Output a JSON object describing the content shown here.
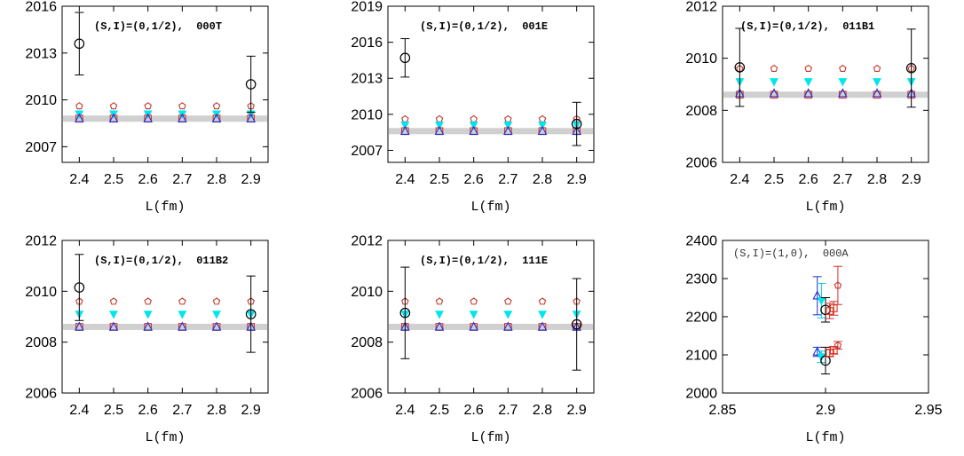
{
  "colors": {
    "black": "#000000",
    "pentagon": "#c0392b",
    "triangle_down": "#00e5ee",
    "square": "#e0301e",
    "triangle_up": "#1f2fd6",
    "band": "#d0d0d0",
    "cyan_bar": "#00c8e8",
    "red_bar": "#d03030"
  },
  "chart_data": [
    {
      "type": "scatter",
      "title": "(S,I)=(0,1/2),  000T",
      "xlabel": "L(fm)",
      "ylabel": "",
      "xlim": [
        2.35,
        2.95
      ],
      "ylim": [
        2006,
        2016
      ],
      "yticks": [
        2007,
        2010,
        2013,
        2016
      ],
      "xticks": [
        2.4,
        2.5,
        2.6,
        2.7,
        2.8,
        2.9
      ],
      "band": {
        "y": 2008.8
      },
      "series": [
        {
          "marker": "pentagon",
          "x": [
            2.4,
            2.5,
            2.6,
            2.7,
            2.8,
            2.9
          ],
          "y": [
            2009.6,
            2009.6,
            2009.6,
            2009.6,
            2009.6,
            2009.6
          ]
        },
        {
          "marker": "triangle_down",
          "x": [
            2.4,
            2.5,
            2.6,
            2.7,
            2.8,
            2.9
          ],
          "y": [
            2009.1,
            2009.1,
            2009.1,
            2009.1,
            2009.1,
            2009.1
          ]
        },
        {
          "marker": "square",
          "x": [
            2.4,
            2.5,
            2.6,
            2.7,
            2.8,
            2.9
          ],
          "y": [
            2008.8,
            2008.8,
            2008.8,
            2008.8,
            2008.8,
            2008.8
          ]
        },
        {
          "marker": "triangle_up",
          "x": [
            2.4,
            2.5,
            2.6,
            2.7,
            2.8,
            2.9
          ],
          "y": [
            2008.8,
            2008.8,
            2008.8,
            2008.8,
            2008.8,
            2008.8
          ]
        },
        {
          "marker": "circle",
          "x": [
            2.4,
            2.9
          ],
          "y": [
            2013.6,
            2011.0
          ],
          "err": [
            2.0,
            1.8
          ]
        }
      ]
    },
    {
      "type": "scatter",
      "title": "(S,I)=(0,1/2),  001E",
      "xlabel": "L(fm)",
      "ylabel": "",
      "xlim": [
        2.35,
        2.95
      ],
      "ylim": [
        2006,
        2019
      ],
      "yticks": [
        2007,
        2010,
        2013,
        2016,
        2019
      ],
      "xticks": [
        2.4,
        2.5,
        2.6,
        2.7,
        2.8,
        2.9
      ],
      "band": {
        "y": 2008.6
      },
      "series": [
        {
          "marker": "pentagon",
          "x": [
            2.4,
            2.5,
            2.6,
            2.7,
            2.8,
            2.9
          ],
          "y": [
            2009.6,
            2009.6,
            2009.6,
            2009.6,
            2009.6,
            2009.6
          ]
        },
        {
          "marker": "triangle_down",
          "x": [
            2.4,
            2.5,
            2.6,
            2.7,
            2.8,
            2.9
          ],
          "y": [
            2009.1,
            2009.1,
            2009.1,
            2009.1,
            2009.1,
            2009.1
          ]
        },
        {
          "marker": "square",
          "x": [
            2.4,
            2.5,
            2.6,
            2.7,
            2.8,
            2.9
          ],
          "y": [
            2008.6,
            2008.6,
            2008.6,
            2008.6,
            2008.6,
            2008.6
          ]
        },
        {
          "marker": "triangle_up",
          "x": [
            2.4,
            2.5,
            2.6,
            2.7,
            2.8,
            2.9
          ],
          "y": [
            2008.6,
            2008.6,
            2008.6,
            2008.6,
            2008.6,
            2008.6
          ]
        },
        {
          "marker": "circle",
          "x": [
            2.4,
            2.9
          ],
          "y": [
            2014.7,
            2009.2
          ],
          "err": [
            1.6,
            1.8
          ]
        }
      ]
    },
    {
      "type": "scatter",
      "title": "(S,I)=(0,1/2),  011B1",
      "xlabel": "L(fm)",
      "ylabel": "",
      "xlim": [
        2.35,
        2.95
      ],
      "ylim": [
        2006,
        2012
      ],
      "yticks": [
        2006,
        2008,
        2010,
        2012
      ],
      "xticks": [
        2.4,
        2.5,
        2.6,
        2.7,
        2.8,
        2.9
      ],
      "band": {
        "y": 2008.6
      },
      "series": [
        {
          "marker": "pentagon",
          "x": [
            2.4,
            2.5,
            2.6,
            2.7,
            2.8,
            2.9
          ],
          "y": [
            2009.6,
            2009.6,
            2009.6,
            2009.6,
            2009.6,
            2009.6
          ]
        },
        {
          "marker": "triangle_down",
          "x": [
            2.4,
            2.5,
            2.6,
            2.7,
            2.8,
            2.9
          ],
          "y": [
            2009.1,
            2009.1,
            2009.1,
            2009.1,
            2009.1,
            2009.1
          ]
        },
        {
          "marker": "square",
          "x": [
            2.4,
            2.5,
            2.6,
            2.7,
            2.8,
            2.9
          ],
          "y": [
            2008.6,
            2008.6,
            2008.6,
            2008.6,
            2008.6,
            2008.6
          ]
        },
        {
          "marker": "triangle_up",
          "x": [
            2.4,
            2.5,
            2.6,
            2.7,
            2.8,
            2.9
          ],
          "y": [
            2008.65,
            2008.65,
            2008.65,
            2008.65,
            2008.65,
            2008.65
          ]
        },
        {
          "marker": "circle",
          "x": [
            2.4,
            2.9
          ],
          "y": [
            2009.65,
            2009.62
          ],
          "err": [
            1.5,
            1.5
          ]
        }
      ]
    },
    {
      "type": "scatter",
      "title": "(S,I)=(0,1/2),  011B2",
      "xlabel": "L(fm)",
      "ylabel": "",
      "xlim": [
        2.35,
        2.95
      ],
      "ylim": [
        2006,
        2012
      ],
      "yticks": [
        2006,
        2008,
        2010,
        2012
      ],
      "xticks": [
        2.4,
        2.5,
        2.6,
        2.7,
        2.8,
        2.9
      ],
      "band": {
        "y": 2008.6
      },
      "series": [
        {
          "marker": "pentagon",
          "x": [
            2.4,
            2.5,
            2.6,
            2.7,
            2.8,
            2.9
          ],
          "y": [
            2009.6,
            2009.6,
            2009.6,
            2009.6,
            2009.6,
            2009.6
          ]
        },
        {
          "marker": "triangle_down",
          "x": [
            2.4,
            2.5,
            2.6,
            2.7,
            2.8,
            2.9
          ],
          "y": [
            2009.1,
            2009.1,
            2009.1,
            2009.1,
            2009.1,
            2009.1
          ]
        },
        {
          "marker": "square",
          "x": [
            2.4,
            2.5,
            2.6,
            2.7,
            2.8,
            2.9
          ],
          "y": [
            2008.6,
            2008.6,
            2008.6,
            2008.6,
            2008.6,
            2008.6
          ]
        },
        {
          "marker": "triangle_up",
          "x": [
            2.4,
            2.5,
            2.6,
            2.7,
            2.8,
            2.9
          ],
          "y": [
            2008.6,
            2008.6,
            2008.6,
            2008.6,
            2008.6,
            2008.6
          ]
        },
        {
          "marker": "circle",
          "x": [
            2.4,
            2.9
          ],
          "y": [
            2010.15,
            2009.1
          ],
          "err": [
            1.3,
            1.5
          ]
        }
      ]
    },
    {
      "type": "scatter",
      "title": "(S,I)=(0,1/2),  111E",
      "xlabel": "L(fm)",
      "ylabel": "",
      "xlim": [
        2.35,
        2.95
      ],
      "ylim": [
        2006,
        2012
      ],
      "yticks": [
        2006,
        2008,
        2010,
        2012
      ],
      "xticks": [
        2.4,
        2.5,
        2.6,
        2.7,
        2.8,
        2.9
      ],
      "band": {
        "y": 2008.6
      },
      "series": [
        {
          "marker": "pentagon",
          "x": [
            2.4,
            2.5,
            2.6,
            2.7,
            2.8,
            2.9
          ],
          "y": [
            2009.6,
            2009.6,
            2009.6,
            2009.6,
            2009.6,
            2009.6
          ]
        },
        {
          "marker": "triangle_down",
          "x": [
            2.4,
            2.5,
            2.6,
            2.7,
            2.8,
            2.9
          ],
          "y": [
            2009.1,
            2009.1,
            2009.1,
            2009.1,
            2009.1,
            2009.1
          ]
        },
        {
          "marker": "square",
          "x": [
            2.4,
            2.5,
            2.6,
            2.7,
            2.8,
            2.9
          ],
          "y": [
            2008.6,
            2008.6,
            2008.6,
            2008.6,
            2008.6,
            2008.6
          ]
        },
        {
          "marker": "triangle_up",
          "x": [
            2.4,
            2.5,
            2.6,
            2.7,
            2.8,
            2.9
          ],
          "y": [
            2008.6,
            2008.6,
            2008.6,
            2008.6,
            2008.6,
            2008.6
          ]
        },
        {
          "marker": "circle",
          "x": [
            2.4,
            2.9
          ],
          "y": [
            2009.15,
            2008.7
          ],
          "err": [
            1.8,
            1.8
          ]
        }
      ]
    },
    {
      "type": "scatter",
      "title": "(S,I)=(1,0),  000A",
      "xlabel": "L(fm)",
      "ylabel": "",
      "xlim": [
        2.85,
        2.95
      ],
      "ylim": [
        2000,
        2400
      ],
      "yticks": [
        2000,
        2100,
        2200,
        2300,
        2400
      ],
      "xticks": [
        2.85,
        2.9,
        2.95
      ],
      "series": [
        {
          "marker": "triangle_up",
          "x": [
            2.896,
            2.896
          ],
          "y": [
            2255,
            2108
          ],
          "err": [
            50,
            12
          ]
        },
        {
          "marker": "triangle_down",
          "x": [
            2.898,
            2.898
          ],
          "y": [
            2242,
            2095
          ],
          "err": [
            45,
            15
          ]
        },
        {
          "marker": "circle",
          "x": [
            2.9,
            2.9
          ],
          "y": [
            2218,
            2085
          ],
          "err": [
            32,
            35
          ]
        },
        {
          "marker": "square",
          "x": [
            2.902,
            2.902,
            2.904,
            2.904
          ],
          "y": [
            2215,
            2105,
            2222,
            2112
          ],
          "err": [
            20,
            10,
            18,
            10
          ]
        },
        {
          "marker": "pentagon",
          "x": [
            2.906,
            2.906
          ],
          "y": [
            2282,
            2125
          ],
          "err": [
            50,
            10
          ]
        }
      ]
    }
  ]
}
